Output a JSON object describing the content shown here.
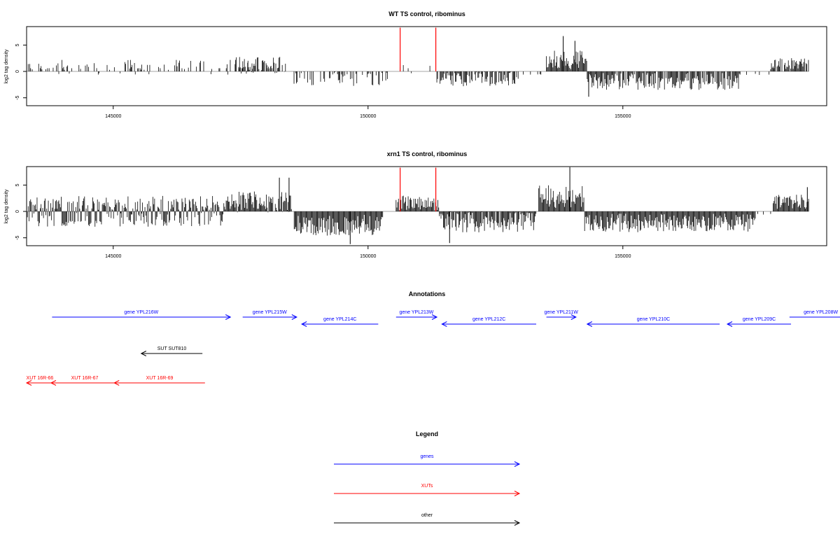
{
  "chart_data": [
    {
      "type": "bar",
      "title": "WT TS control, ribominus",
      "ylabel": "log2 tag density",
      "xlabel": "",
      "xlim": [
        143300,
        159000
      ],
      "ylim": [
        -6.5,
        8.5
      ],
      "xticks": [
        145000,
        150000,
        155000
      ],
      "yticks": [
        -5,
        0,
        5
      ],
      "grid": false,
      "series_colors": {
        "signal": "#000000",
        "highlight": "#ff0000"
      },
      "segments": [
        {
          "start": 143300,
          "end": 148200,
          "mean": 0.8,
          "amp": 1.4,
          "density": 0.3,
          "sparse": true
        },
        {
          "start": 147400,
          "end": 148400,
          "mean": 1.2,
          "amp": 1.6,
          "density": 0.7
        },
        {
          "start": 148500,
          "end": 150400,
          "mean": -1.4,
          "amp": 1.4,
          "density": 0.5
        },
        {
          "start": 150550,
          "end": 151350,
          "mean": 0.4,
          "amp": 0.8,
          "density": 0.2,
          "sparse": true
        },
        {
          "start": 151350,
          "end": 152950,
          "mean": -1.4,
          "amp": 1.4,
          "density": 0.7
        },
        {
          "start": 152950,
          "end": 153450,
          "mean": -0.3,
          "amp": 0.6,
          "density": 0.15,
          "sparse": true
        },
        {
          "start": 153500,
          "end": 154300,
          "mean": 2.2,
          "amp": 1.8,
          "density": 1.0
        },
        {
          "start": 154300,
          "end": 157300,
          "mean": -1.9,
          "amp": 1.6,
          "density": 0.85
        },
        {
          "start": 157300,
          "end": 157900,
          "mean": -0.4,
          "amp": 0.5,
          "density": 0.1,
          "sparse": true
        },
        {
          "start": 157900,
          "end": 158650,
          "mean": 1.5,
          "amp": 1.1,
          "density": 0.9
        }
      ],
      "highlights": [
        {
          "x": 150630,
          "value": 8.3
        },
        {
          "x": 151330,
          "value": 8.3
        }
      ],
      "spikes": [
        {
          "x": 153830,
          "value": 6.7
        },
        {
          "x": 154060,
          "value": 5.8
        },
        {
          "x": 154330,
          "value": -4.8
        }
      ],
      "seed": 11
    },
    {
      "type": "bar",
      "title": "xrn1 TS control, ribominus",
      "ylabel": "log2 tag density",
      "xlabel": "",
      "xlim": [
        143300,
        159000
      ],
      "ylim": [
        -6.5,
        8.5
      ],
      "xticks": [
        145000,
        150000,
        155000
      ],
      "yticks": [
        -5,
        0,
        5
      ],
      "grid": false,
      "series_colors": {
        "signal": "#000000",
        "highlight": "#ff0000"
      },
      "segments": [
        {
          "start": 143300,
          "end": 147200,
          "mean": 0.6,
          "amp": 2.2,
          "density": 1.0,
          "bipolar": true
        },
        {
          "start": 147200,
          "end": 148500,
          "mean": 1.8,
          "amp": 2.0,
          "density": 1.0
        },
        {
          "start": 148550,
          "end": 150300,
          "mean": -2.6,
          "amp": 2.0,
          "density": 1.0
        },
        {
          "start": 150550,
          "end": 151400,
          "mean": 1.6,
          "amp": 1.4,
          "density": 1.0
        },
        {
          "start": 151400,
          "end": 153300,
          "mean": -2.0,
          "amp": 2.0,
          "density": 1.0
        },
        {
          "start": 153350,
          "end": 154250,
          "mean": 2.8,
          "amp": 2.2,
          "density": 1.0
        },
        {
          "start": 154250,
          "end": 157600,
          "mean": -2.2,
          "amp": 1.8,
          "density": 1.0
        },
        {
          "start": 157600,
          "end": 157950,
          "mean": -0.3,
          "amp": 0.4,
          "density": 0.2,
          "sparse": true
        },
        {
          "start": 157950,
          "end": 158650,
          "mean": 1.8,
          "amp": 1.4,
          "density": 1.0
        }
      ],
      "highlights": [
        {
          "x": 150630,
          "value": 8.3
        },
        {
          "x": 151330,
          "value": 8.3
        }
      ],
      "spikes": [
        {
          "x": 148260,
          "value": 6.4
        },
        {
          "x": 148450,
          "value": 6.4
        },
        {
          "x": 153960,
          "value": 8.4
        },
        {
          "x": 149650,
          "value": -6.2
        },
        {
          "x": 151600,
          "value": -6.0
        },
        {
          "x": 158620,
          "value": 4.6
        }
      ],
      "seed": 29
    }
  ],
  "annotations": {
    "title": "Annotations",
    "genes": [
      {
        "label": "gene YPL216W",
        "start": 143800,
        "end": 147300,
        "strand": "+",
        "row": 0
      },
      {
        "label": "gene YPL215W",
        "start": 147540,
        "end": 148600,
        "strand": "+",
        "row": 0
      },
      {
        "label": "gene YPL214C",
        "start": 148700,
        "end": 150200,
        "strand": "-",
        "row": 1
      },
      {
        "label": "gene YPL213W",
        "start": 150550,
        "end": 151350,
        "strand": "+",
        "row": 0
      },
      {
        "label": "gene YPL212C",
        "start": 151450,
        "end": 153300,
        "strand": "-",
        "row": 1
      },
      {
        "label": "gene YPL211W",
        "start": 153500,
        "end": 154080,
        "strand": "+",
        "row": 0
      },
      {
        "label": "gene YPL210C",
        "start": 154300,
        "end": 156900,
        "strand": "-",
        "row": 1
      },
      {
        "label": "gene YPL209C",
        "start": 157050,
        "end": 158300,
        "strand": "-",
        "row": 1
      },
      {
        "label": "gene YPL208W",
        "start": 158270,
        "end": 159500,
        "strand": "+",
        "row": 0
      }
    ],
    "other": [
      {
        "label": "SUT SUT810",
        "start": 145550,
        "end": 146750,
        "strand": "-",
        "row": 0
      }
    ],
    "xuts": [
      {
        "label": "XUT 16R-66",
        "start": 143300,
        "end": 143820,
        "strand": "-",
        "row": 0
      },
      {
        "label": "XUT 16R-67",
        "start": 143780,
        "end": 145100,
        "strand": "-",
        "row": 0
      },
      {
        "label": "XUT 16R-69",
        "start": 145020,
        "end": 146800,
        "strand": "-",
        "row": 0
      }
    ]
  },
  "legend": {
    "title": "Legend",
    "items": [
      {
        "label": "genes",
        "color": "#0000ff"
      },
      {
        "label": "XUTs",
        "color": "#ff0000"
      },
      {
        "label": "other",
        "color": "#000000"
      }
    ]
  },
  "colors": {
    "gene": "#0000ff",
    "xut": "#ff0000",
    "other": "#000000",
    "axis": "#000000",
    "baseline": "#888888"
  }
}
